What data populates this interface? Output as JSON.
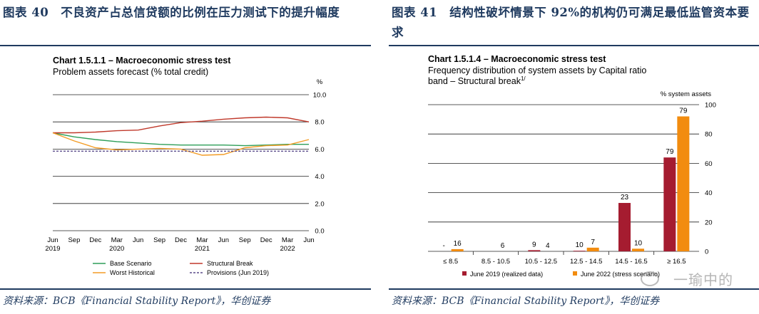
{
  "left": {
    "figure_title": "图表 40　不良资产占总信贷额的比例在压力测试下的提升幅度",
    "source": "资料来源：BCB《Financial Stability Report》，华创证券",
    "chart_data": {
      "type": "line",
      "title": "Chart 1.5.1.1 – Macroeconomic stress test",
      "subtitle": "Problem assets forecast (% total credit)",
      "unit": "%",
      "x_ticks_top": [
        "Jun",
        "Sep",
        "Dec",
        "Mar",
        "Jun",
        "Sep",
        "Dec",
        "Mar",
        "Jun",
        "Sep",
        "Dec",
        "Mar",
        "Jun"
      ],
      "x_ticks_bottom": [
        "2019",
        "",
        "",
        "2020",
        "",
        "",
        "",
        "2021",
        "",
        "",
        "",
        "2022",
        ""
      ],
      "y_ticks": [
        "10.0",
        "8.0",
        "6.0",
        "4.0",
        "2.0",
        "0.0"
      ],
      "ylim": [
        0,
        10
      ],
      "x": [
        0,
        1,
        2,
        3,
        4,
        5,
        6,
        7,
        8,
        9,
        10,
        11,
        12
      ],
      "series": [
        {
          "name": "Base Scenario",
          "color": "#2e9e58",
          "values": [
            7.2,
            6.9,
            6.7,
            6.55,
            6.45,
            6.35,
            6.3,
            6.3,
            6.3,
            6.25,
            6.3,
            6.35,
            6.35
          ]
        },
        {
          "name": "Structural Break",
          "color": "#c0392b",
          "values": [
            7.2,
            7.2,
            7.25,
            7.35,
            7.4,
            7.7,
            7.95,
            8.05,
            8.2,
            8.3,
            8.35,
            8.3,
            8.0
          ]
        },
        {
          "name": "Worst Historical",
          "color": "#f39c26",
          "values": [
            7.2,
            6.6,
            6.1,
            5.95,
            6.0,
            6.05,
            6.0,
            5.55,
            5.6,
            6.1,
            6.25,
            6.3,
            6.7
          ]
        },
        {
          "name": "Provisions (Jun 2019)",
          "color": "#5b4c8a",
          "dashed": true,
          "values": [
            5.85,
            5.85,
            5.85,
            5.85,
            5.85,
            5.85,
            5.85,
            5.85,
            5.85,
            5.85,
            5.85,
            5.85,
            5.85
          ]
        }
      ],
      "legend_placement": "bottom"
    }
  },
  "right": {
    "figure_title": "图表 41　结构性破坏情景下 92%的机构仍可满足最低监管资本要求",
    "source": "资料来源：BCB《Financial Stability Report》，华创证券",
    "chart_data": {
      "type": "bar",
      "title": "Chart 1.5.1.4 – Macroeconomic stress test",
      "subtitle": "Frequency distribution of system assets by Capital ratio band – Structural break",
      "subtitle_sup": "1/",
      "ylabel": "% system assets",
      "categories": [
        "≤ 8.5",
        "8.5 - 10.5",
        "10.5 - 12.5",
        "12.5 - 14.5",
        "14.5 - 16.5",
        "≥ 16.5"
      ],
      "y_ticks": [
        "100",
        "80",
        "60",
        "40",
        "20",
        "0"
      ],
      "ylim": [
        0,
        100
      ],
      "series": [
        {
          "name": "June 2019 (realized data)",
          "color": "#a51c30",
          "values": [
            0,
            0,
            0.8,
            0.4,
            33,
            64
          ],
          "labels": [
            "-",
            "",
            "9",
            "10",
            "23",
            "79"
          ]
        },
        {
          "name": "June 2022 (stress scenario)",
          "color": "#f28c0f",
          "values": [
            1.5,
            0,
            0,
            2.5,
            1.8,
            92
          ],
          "labels": [
            "16",
            "6",
            "4",
            "7",
            "10",
            "79"
          ]
        }
      ],
      "legend_placement": "bottom"
    }
  },
  "watermark": "一瑜中的"
}
